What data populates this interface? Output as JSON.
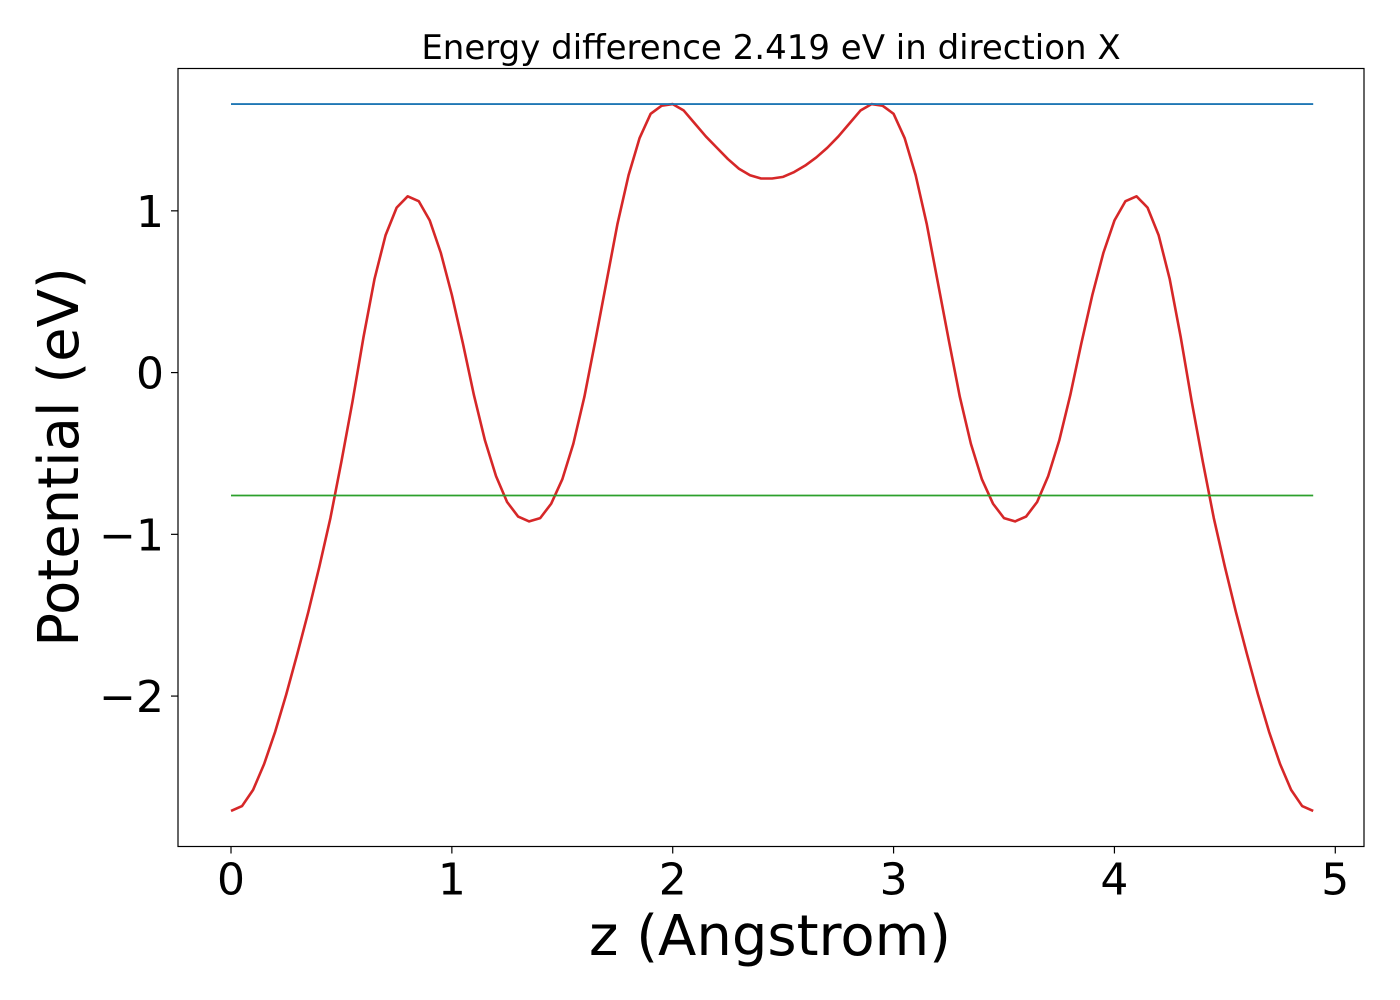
{
  "chart_data": {
    "type": "line",
    "title": "Energy difference 2.419 eV in direction X",
    "xlabel": "z (Angstrom)",
    "ylabel": "Potential (eV)",
    "xlim": [
      -0.24,
      5.13
    ],
    "ylim": [
      -2.93,
      1.88
    ],
    "xticks": [
      0,
      1,
      2,
      3,
      4,
      5
    ],
    "xtick_labels": [
      "0",
      "1",
      "2",
      "3",
      "4",
      "5"
    ],
    "yticks": [
      -2,
      -1,
      0,
      1
    ],
    "ytick_labels": [
      "−2",
      "−1",
      "0",
      "1"
    ],
    "grid": false,
    "series": [
      {
        "color": "#d62728",
        "x": [
          0.0,
          0.05,
          0.1,
          0.15,
          0.2,
          0.25,
          0.3,
          0.35,
          0.4,
          0.45,
          0.5,
          0.55,
          0.6,
          0.65,
          0.7,
          0.75,
          0.8,
          0.85,
          0.9,
          0.95,
          1.0,
          1.05,
          1.1,
          1.15,
          1.2,
          1.25,
          1.3,
          1.35,
          1.4,
          1.45,
          1.5,
          1.55,
          1.6,
          1.65,
          1.7,
          1.75,
          1.8,
          1.85,
          1.9,
          1.95,
          2.0,
          2.05,
          2.1,
          2.15,
          2.2,
          2.25,
          2.3,
          2.35,
          2.4,
          2.45,
          2.5,
          2.55,
          2.6,
          2.65,
          2.7,
          2.75,
          2.8,
          2.85,
          2.9,
          2.95,
          3.0,
          3.05,
          3.1,
          3.15,
          3.2,
          3.25,
          3.3,
          3.35,
          3.4,
          3.45,
          3.5,
          3.55,
          3.6,
          3.65,
          3.7,
          3.75,
          3.8,
          3.85,
          3.9,
          3.95,
          4.0,
          4.05,
          4.1,
          4.15,
          4.2,
          4.25,
          4.3,
          4.35,
          4.4,
          4.45,
          4.5,
          4.55,
          4.6,
          4.65,
          4.7,
          4.75,
          4.8,
          4.85,
          4.9
        ],
        "y": [
          -2.71,
          -2.68,
          -2.58,
          -2.42,
          -2.22,
          -1.99,
          -1.74,
          -1.48,
          -1.2,
          -0.9,
          -0.55,
          -0.18,
          0.22,
          0.58,
          0.85,
          1.02,
          1.09,
          1.06,
          0.94,
          0.74,
          0.48,
          0.18,
          -0.14,
          -0.42,
          -0.64,
          -0.8,
          -0.89,
          -0.92,
          -0.9,
          -0.81,
          -0.66,
          -0.44,
          -0.15,
          0.2,
          0.56,
          0.92,
          1.22,
          1.45,
          1.6,
          1.65,
          1.66,
          1.62,
          1.54,
          1.46,
          1.39,
          1.32,
          1.26,
          1.22,
          1.2,
          1.2,
          1.21,
          1.24,
          1.28,
          1.33,
          1.39,
          1.46,
          1.54,
          1.62,
          1.66,
          1.65,
          1.6,
          1.45,
          1.22,
          0.92,
          0.56,
          0.2,
          -0.15,
          -0.44,
          -0.66,
          -0.81,
          -0.9,
          -0.92,
          -0.89,
          -0.8,
          -0.64,
          -0.42,
          -0.14,
          0.18,
          0.48,
          0.74,
          0.94,
          1.06,
          1.09,
          1.02,
          0.85,
          0.58,
          0.22,
          -0.18,
          -0.55,
          -0.9,
          -1.2,
          -1.48,
          -1.74,
          -1.99,
          -2.22,
          -2.42,
          -2.58,
          -2.68,
          -2.71
        ]
      },
      {
        "color": "#1f77b4",
        "x": [
          0.0,
          4.9
        ],
        "y": [
          1.66,
          1.66
        ]
      },
      {
        "color": "#2ca02c",
        "x": [
          0.0,
          4.9
        ],
        "y": [
          -0.76,
          -0.76
        ]
      }
    ]
  }
}
